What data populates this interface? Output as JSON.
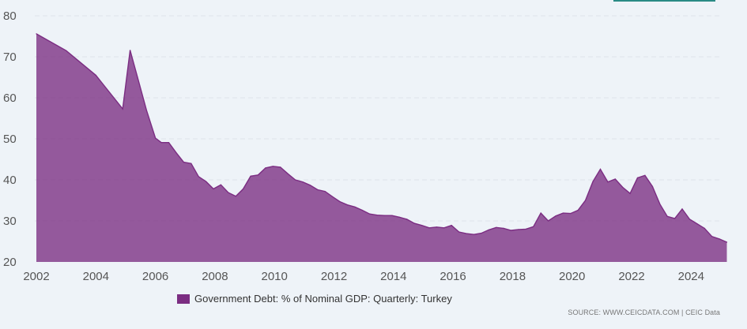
{
  "chart_data": {
    "type": "area",
    "series": [
      {
        "name": "Government Debt: % of Nominal GDP: Quarterly: Turkey",
        "color": "#7b2d82",
        "points": [
          [
            2002.0,
            75.6
          ],
          [
            2003.0,
            71.5
          ],
          [
            2004.0,
            65.5
          ],
          [
            2004.9,
            57.3
          ],
          [
            2005.15,
            71.6
          ],
          [
            2005.4,
            65.0
          ],
          [
            2005.7,
            57.0
          ],
          [
            2006.0,
            50.2
          ],
          [
            2006.2,
            49.1
          ],
          [
            2006.45,
            49.1
          ],
          [
            2006.7,
            46.6
          ],
          [
            2006.95,
            44.3
          ],
          [
            2007.2,
            44.0
          ],
          [
            2007.45,
            40.8
          ],
          [
            2007.7,
            39.6
          ],
          [
            2007.95,
            37.8
          ],
          [
            2008.2,
            38.8
          ],
          [
            2008.45,
            36.9
          ],
          [
            2008.7,
            36.0
          ],
          [
            2008.95,
            37.8
          ],
          [
            2009.2,
            40.9
          ],
          [
            2009.45,
            41.2
          ],
          [
            2009.7,
            42.9
          ],
          [
            2009.95,
            43.3
          ],
          [
            2010.2,
            43.1
          ],
          [
            2010.45,
            41.5
          ],
          [
            2010.7,
            40.0
          ],
          [
            2010.95,
            39.5
          ],
          [
            2011.2,
            38.7
          ],
          [
            2011.45,
            37.6
          ],
          [
            2011.7,
            37.2
          ],
          [
            2011.95,
            35.9
          ],
          [
            2012.2,
            34.7
          ],
          [
            2012.45,
            33.9
          ],
          [
            2012.7,
            33.4
          ],
          [
            2012.95,
            32.6
          ],
          [
            2013.2,
            31.7
          ],
          [
            2013.45,
            31.4
          ],
          [
            2013.7,
            31.3
          ],
          [
            2013.95,
            31.3
          ],
          [
            2014.2,
            30.9
          ],
          [
            2014.45,
            30.4
          ],
          [
            2014.7,
            29.4
          ],
          [
            2014.95,
            28.9
          ],
          [
            2015.2,
            28.3
          ],
          [
            2015.45,
            28.5
          ],
          [
            2015.7,
            28.3
          ],
          [
            2015.95,
            28.9
          ],
          [
            2016.2,
            27.3
          ],
          [
            2016.45,
            26.9
          ],
          [
            2016.7,
            26.7
          ],
          [
            2016.95,
            27.0
          ],
          [
            2017.2,
            27.8
          ],
          [
            2017.45,
            28.4
          ],
          [
            2017.7,
            28.2
          ],
          [
            2017.95,
            27.7
          ],
          [
            2018.2,
            27.9
          ],
          [
            2018.45,
            28.0
          ],
          [
            2018.7,
            28.6
          ],
          [
            2018.95,
            31.9
          ],
          [
            2019.2,
            30.0
          ],
          [
            2019.45,
            31.2
          ],
          [
            2019.7,
            31.9
          ],
          [
            2019.95,
            31.8
          ],
          [
            2020.2,
            32.6
          ],
          [
            2020.45,
            35.0
          ],
          [
            2020.7,
            39.6
          ],
          [
            2020.95,
            42.6
          ],
          [
            2021.2,
            39.5
          ],
          [
            2021.45,
            40.2
          ],
          [
            2021.7,
            38.2
          ],
          [
            2021.95,
            36.7
          ],
          [
            2022.2,
            40.5
          ],
          [
            2022.45,
            41.1
          ],
          [
            2022.7,
            38.4
          ],
          [
            2022.95,
            34.1
          ],
          [
            2023.2,
            31.1
          ],
          [
            2023.45,
            30.6
          ],
          [
            2023.7,
            32.9
          ],
          [
            2023.95,
            30.4
          ],
          [
            2024.2,
            29.3
          ],
          [
            2024.45,
            28.2
          ],
          [
            2024.7,
            26.2
          ],
          [
            2024.95,
            25.6
          ],
          [
            2025.2,
            24.8
          ]
        ]
      }
    ],
    "x_ticks": [
      "2002",
      "2004",
      "2006",
      "2008",
      "2010",
      "2012",
      "2014",
      "2016",
      "2018",
      "2020",
      "2022",
      "2024"
    ],
    "y_ticks": [
      "20",
      "30",
      "40",
      "50",
      "60",
      "70",
      "80"
    ],
    "ylim": [
      20,
      80
    ],
    "xlim": [
      2002,
      2025.2
    ],
    "grid": "horizontal dashed",
    "legend": "bottom-center"
  },
  "legend": {
    "label": "Government Debt: % of Nominal GDP: Quarterly: Turkey",
    "color": "#7b2d82"
  },
  "source": "SOURCE: WWW.CEICDATA.COM | CEIC Data"
}
